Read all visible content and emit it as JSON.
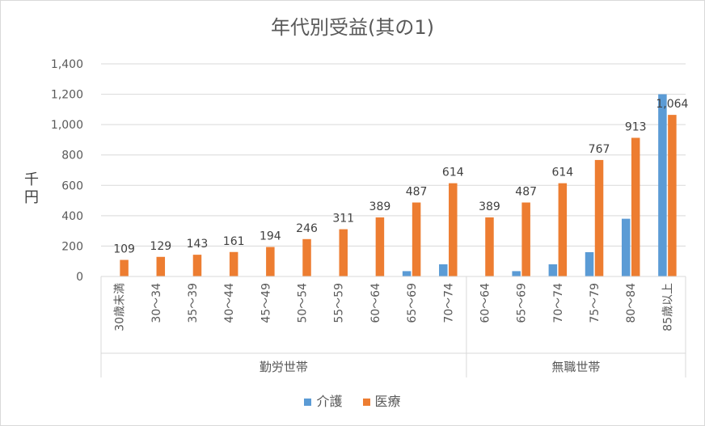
{
  "chart_data": {
    "type": "bar",
    "title": "年代別受益(其の1)",
    "ylabel": "千円",
    "ylim": [
      0,
      1400
    ],
    "yticks": [
      "0",
      "200",
      "400",
      "600",
      "800",
      "1,000",
      "1,200",
      "1,400"
    ],
    "grid": true,
    "legend_position": "bottom",
    "categories": [
      "30歳未満",
      "30～34",
      "35～39",
      "40～44",
      "45～49",
      "50～54",
      "55～59",
      "60～64",
      "65～69",
      "70～74",
      "60～64",
      "65～69",
      "70～74",
      "75～79",
      "80～84",
      "85歳以上"
    ],
    "groups": [
      {
        "label": "勤労世帯",
        "start": 0,
        "end": 9
      },
      {
        "label": "無職世帯",
        "start": 10,
        "end": 15
      }
    ],
    "series": [
      {
        "name": "介護",
        "color": "#5B9BD5",
        "values": [
          0,
          0,
          0,
          0,
          0,
          0,
          0,
          0,
          35,
          80,
          0,
          35,
          80,
          160,
          380,
          1200
        ]
      },
      {
        "name": "医療",
        "color": "#ED7D31",
        "values": [
          109,
          129,
          143,
          161,
          194,
          246,
          311,
          389,
          487,
          614,
          389,
          487,
          614,
          767,
          913,
          1064
        ],
        "data_labels": [
          "109",
          "129",
          "143",
          "161",
          "194",
          "246",
          "311",
          "389",
          "487",
          "614",
          "389",
          "487",
          "614",
          "767",
          "913",
          "1,064"
        ]
      }
    ]
  }
}
